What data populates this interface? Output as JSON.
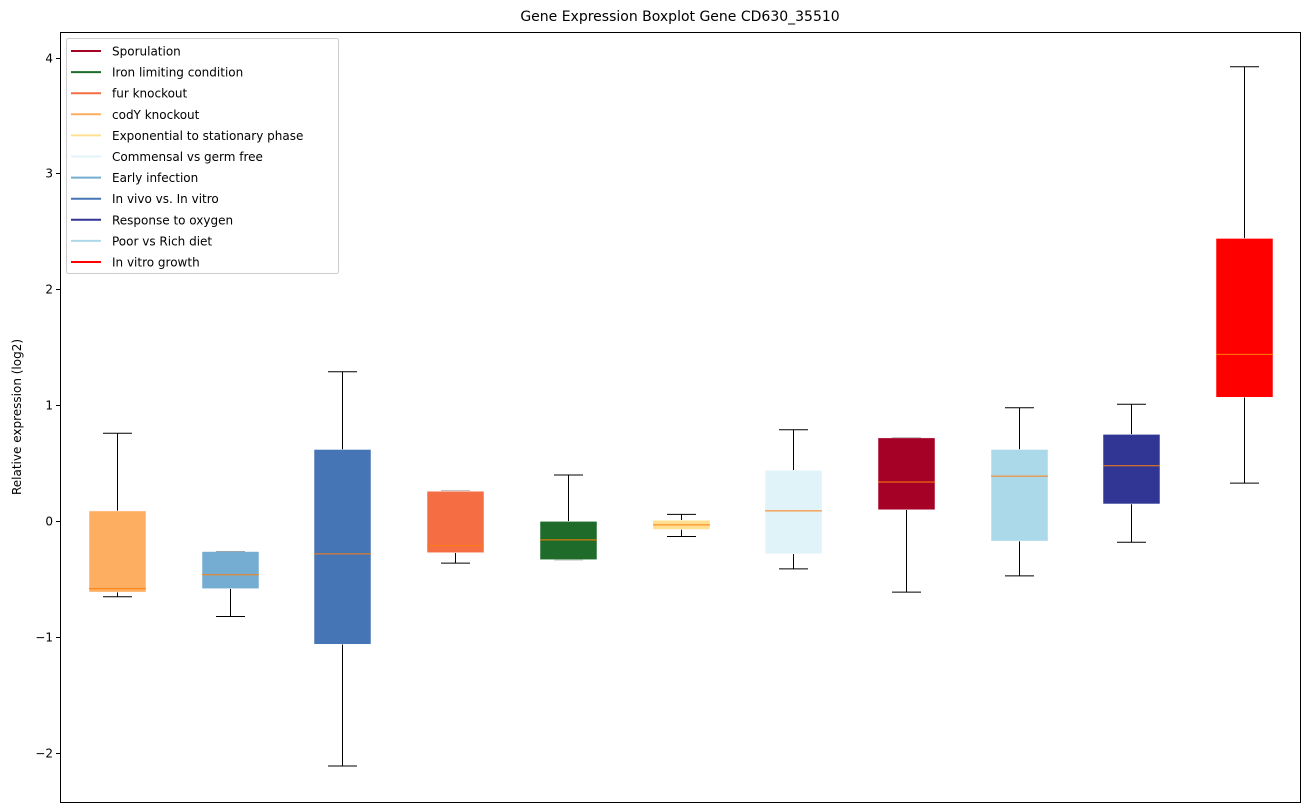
{
  "chart_data": {
    "type": "boxplot",
    "title": "Gene Expression Boxplot Gene CD630_35510",
    "xlabel": "",
    "ylabel": "Relative expression (log2)",
    "ylim": [
      -2.42,
      4.22
    ],
    "yticks": [
      -2,
      -1,
      0,
      1,
      2,
      3,
      4
    ],
    "ytick_labels": [
      "−2",
      "−1",
      "0",
      "1",
      "2",
      "3",
      "4"
    ],
    "grid": false,
    "legend_position": "top-left",
    "median_color": "#ff7f0e",
    "legend": [
      {
        "label": "Sporulation",
        "color": "#a50026"
      },
      {
        "label": "Iron limiting condition",
        "color": "#1f6b2a"
      },
      {
        "label": "fur knockout",
        "color": "#f46d43"
      },
      {
        "label": "codY knockout",
        "color": "#fdae61"
      },
      {
        "label": "Exponential to stationary phase",
        "color": "#fee090"
      },
      {
        "label": "Commensal vs germ free",
        "color": "#e0f3f8"
      },
      {
        "label": "Early infection",
        "color": "#74add1"
      },
      {
        "label": "In vivo vs. In vitro",
        "color": "#4575b4"
      },
      {
        "label": "Response to oxygen",
        "color": "#313695"
      },
      {
        "label": "Poor vs Rich diet",
        "color": "#abd9e9"
      },
      {
        "label": "In vitro growth",
        "color": "#ff0000"
      }
    ],
    "series": [
      {
        "name": "codY knockout",
        "color": "#fdae61",
        "whisker_low": -0.65,
        "q1": -0.61,
        "median": -0.58,
        "q3": 0.09,
        "whisker_high": 0.76
      },
      {
        "name": "Early infection",
        "color": "#74add1",
        "whisker_low": -0.82,
        "q1": -0.58,
        "median": -0.46,
        "q3": -0.26,
        "whisker_high": -0.26
      },
      {
        "name": "In vivo vs. In vitro",
        "color": "#4575b4",
        "whisker_low": -2.11,
        "q1": -1.06,
        "median": -0.28,
        "q3": 0.62,
        "whisker_high": 1.29
      },
      {
        "name": "fur knockout",
        "color": "#f46d43",
        "whisker_low": -0.36,
        "q1": -0.27,
        "median": -0.21,
        "q3": 0.26,
        "whisker_high": 0.26
      },
      {
        "name": "Iron limiting condition",
        "color": "#1f6b2a",
        "whisker_low": -0.33,
        "q1": -0.33,
        "median": -0.16,
        "q3": 0.0,
        "whisker_high": 0.4
      },
      {
        "name": "Exponential to stationary phase",
        "color": "#fee090",
        "whisker_low": -0.13,
        "q1": -0.07,
        "median": -0.03,
        "q3": 0.01,
        "whisker_high": 0.06
      },
      {
        "name": "Commensal vs germ free",
        "color": "#e0f3f8",
        "whisker_low": -0.41,
        "q1": -0.28,
        "median": 0.09,
        "q3": 0.44,
        "whisker_high": 0.79
      },
      {
        "name": "Sporulation",
        "color": "#a50026",
        "whisker_low": -0.61,
        "q1": 0.1,
        "median": 0.34,
        "q3": 0.72,
        "whisker_high": 0.72
      },
      {
        "name": "Poor vs Rich diet",
        "color": "#abd9e9",
        "whisker_low": -0.47,
        "q1": -0.17,
        "median": 0.39,
        "q3": 0.62,
        "whisker_high": 0.98
      },
      {
        "name": "Response to oxygen",
        "color": "#313695",
        "whisker_low": -0.18,
        "q1": 0.15,
        "median": 0.48,
        "q3": 0.75,
        "whisker_high": 1.01
      },
      {
        "name": "In vitro growth",
        "color": "#ff0000",
        "whisker_low": 0.33,
        "q1": 1.07,
        "median": 1.44,
        "q3": 2.44,
        "whisker_high": 3.92
      }
    ]
  }
}
